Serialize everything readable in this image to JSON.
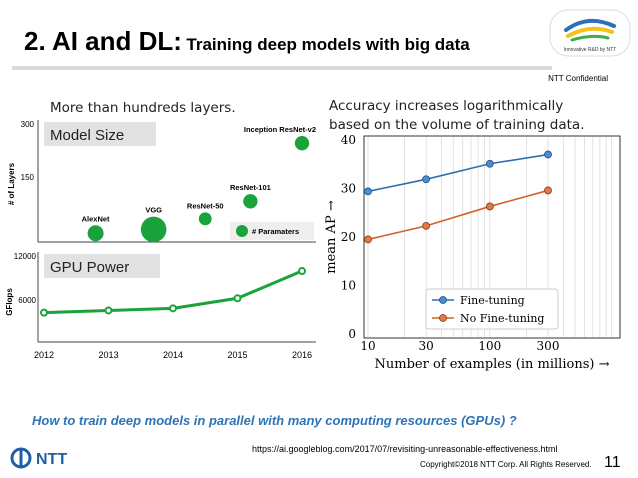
{
  "slide": {
    "title_main": "2. AI and DL:",
    "title_sub": "Training deep models with big data",
    "logo_text": "Innovative R&D by NTT",
    "confidential": "NTT Confidential",
    "left_note": "More than hundreds layers.",
    "right_note_line1": "Accuracy increases logarithmically",
    "right_note_line2": "based on the volume of training data.",
    "bottom_question": "How to train deep models in parallel with many computing resources (GPUs) ?",
    "url": "https://ai.googleblog.com/2017/07/revisiting-unreasonable-effectiveness.html",
    "copyright": "Copyright©2018  NTT Corp. All Rights Reserved.",
    "page_number": "11",
    "ntt_logo": "NTT"
  },
  "colors": {
    "green": "#1aa33a",
    "blue": "#2f6fb1",
    "orange": "#d2622a",
    "question_blue": "#2e74b5"
  },
  "chart_data": [
    {
      "type": "scatter",
      "title": "Model Size",
      "ylabel": "# of Layers",
      "y_ticks": [
        150,
        300
      ],
      "ylim": [
        0,
        320
      ],
      "legend": "# Paramaters",
      "legend_position": "bottom-right",
      "points": [
        {
          "label": "AlexNet",
          "x": 2012.8,
          "y": 8,
          "size": 1.0
        },
        {
          "label": "VGG",
          "x": 2013.7,
          "y": 19,
          "size": 1.6
        },
        {
          "label": "ResNet-50",
          "x": 2014.5,
          "y": 50,
          "size": 0.8
        },
        {
          "label": "ResNet-101",
          "x": 2015.2,
          "y": 101,
          "size": 0.9
        },
        {
          "label": "Inception ResNet-v2",
          "x": 2016.0,
          "y": 270,
          "size": 0.9
        }
      ]
    },
    {
      "type": "line",
      "title": "GPU Power",
      "ylabel": "GFlops",
      "x": [
        2012,
        2013,
        2014,
        2015,
        2016
      ],
      "x_ticks": [
        "2012",
        "2013",
        "2014",
        "2015",
        "2016"
      ],
      "values": [
        4100,
        4400,
        4700,
        6100,
        9900
      ],
      "y_ticks": [
        6000,
        12000
      ],
      "ylim": [
        0,
        12000
      ]
    },
    {
      "type": "line",
      "xlabel": "Number of examples (in millions) →",
      "ylabel": "mean AP →",
      "x_scale": "log",
      "xlim": [
        10,
        300
      ],
      "ylim": [
        0,
        40
      ],
      "x_ticks": [
        10,
        30,
        100,
        300
      ],
      "y_ticks": [
        0,
        10,
        20,
        30,
        40
      ],
      "grid": true,
      "legend_position": "bottom-right",
      "series": [
        {
          "name": "Fine-tuning",
          "x": [
            10,
            30,
            100,
            300
          ],
          "values": [
            29.4,
            31.9,
            35.1,
            37.0
          ]
        },
        {
          "name": "No Fine-tuning",
          "x": [
            10,
            30,
            100,
            300
          ],
          "values": [
            19.5,
            22.3,
            26.3,
            29.6
          ]
        }
      ]
    }
  ]
}
